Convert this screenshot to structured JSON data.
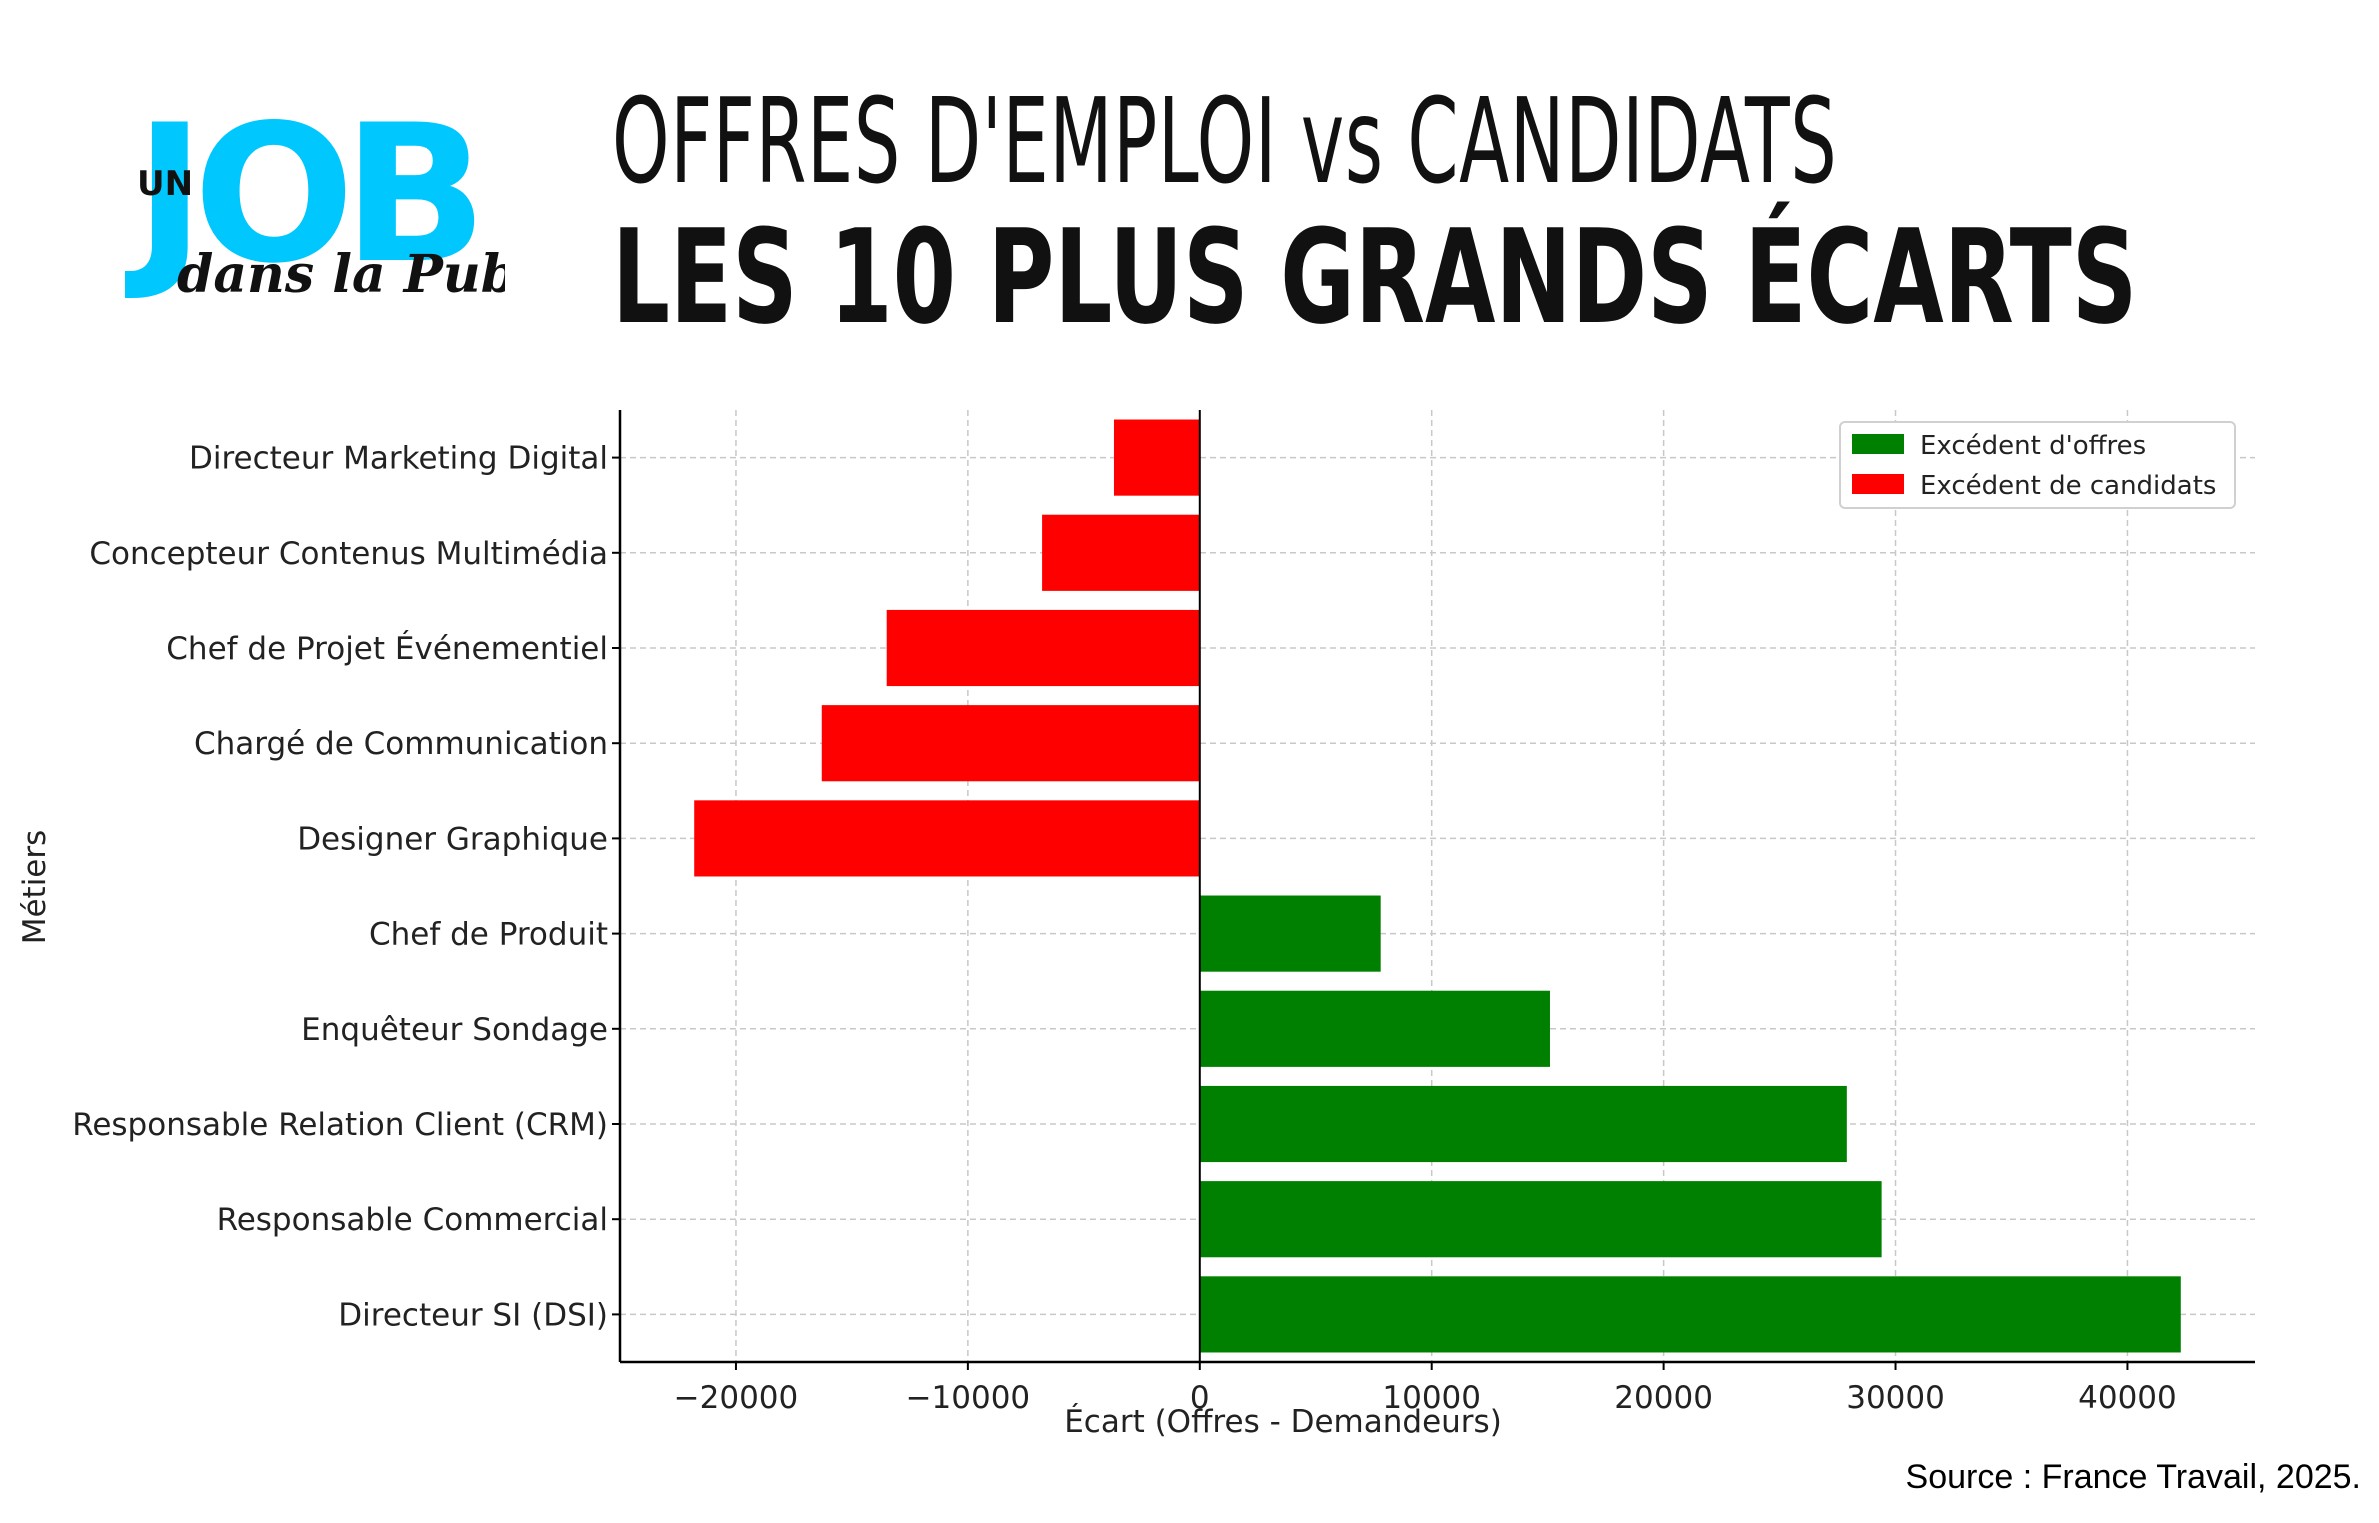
{
  "logo": {
    "un": "UN",
    "job": "JOB",
    "dans": "dans la Pub"
  },
  "header": {
    "title_line1": "OFFRES D'EMPLOI vs CANDIDATS",
    "title_line2": "LES 10 PLUS GRANDS ÉCARTS"
  },
  "colors": {
    "offres": "#008000",
    "candidats": "#ff0000",
    "logo_blue": "#00c8ff"
  },
  "chart_data": {
    "type": "bar",
    "orientation": "horizontal",
    "categories": [
      "Directeur Marketing Digital",
      "Concepteur Contenus Multimédia",
      "Chef de Projet Événementiel",
      "Chargé de Communication",
      "Designer Graphique",
      "Chef de Produit",
      "Enquêteur Sondage",
      "Responsable Relation Client (CRM)",
      "Responsable Commercial",
      "Directeur SI (DSI)"
    ],
    "values": [
      -3700,
      -6800,
      -13500,
      -16300,
      -21800,
      7800,
      15100,
      27900,
      29400,
      42300
    ],
    "xlabel": "Écart (Offres - Demandeurs)",
    "ylabel": "Métiers",
    "xlim": [
      -25000,
      45500
    ],
    "xticks": [
      -20000,
      -10000,
      0,
      10000,
      20000,
      30000,
      40000
    ],
    "xtick_labels": [
      "−20000",
      "−10000",
      "0",
      "10000",
      "20000",
      "30000",
      "40000"
    ],
    "grid": true,
    "legend_position": "top-right",
    "legend": [
      {
        "label": "Excédent d'offres",
        "color": "#008000"
      },
      {
        "label": "Excédent de candidats",
        "color": "#ff0000"
      }
    ]
  },
  "source": "Source : France Travail, 2025."
}
